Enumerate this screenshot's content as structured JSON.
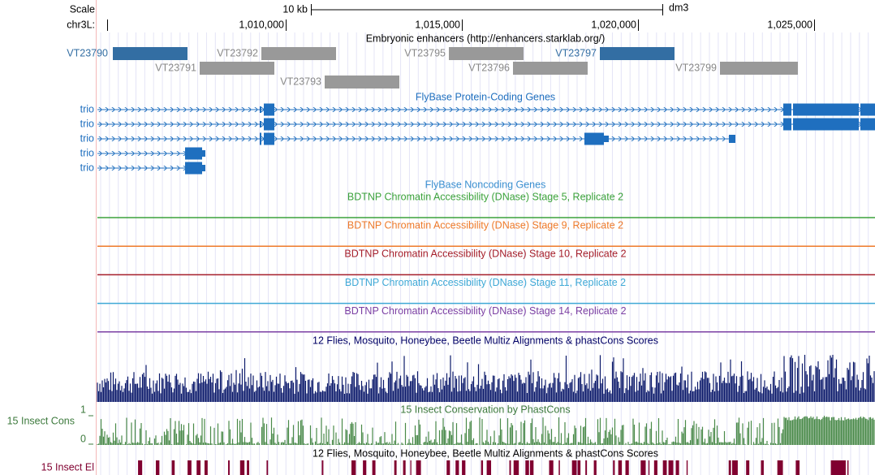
{
  "scale": {
    "label": "Scale",
    "bar_label": "10 kb",
    "assembly": "dm3"
  },
  "ruler": {
    "chrom": "chr3L:",
    "ticks": [
      "1,010,000",
      "1,015,000",
      "1,020,000",
      "1,025,000"
    ]
  },
  "enhancers": {
    "title": "Embryonic enhancers (http://enhancers.starklab.org/)",
    "items": [
      "VT23790",
      "VT23791",
      "VT23792",
      "VT23793",
      "VT23795",
      "VT23796",
      "VT23797",
      "VT23799"
    ]
  },
  "genes": {
    "title": "FlyBase Protein-Coding Genes",
    "labels": [
      "trio",
      "trio",
      "trio",
      "trio",
      "trio"
    ]
  },
  "noncoding": {
    "title": "FlyBase Noncoding Genes"
  },
  "dnase": [
    "BDTNP Chromatin Accessibility (DNase) Stage 5, Replicate 2",
    "BDTNP Chromatin Accessibility (DNase) Stage 9, Replicate 2",
    "BDTNP Chromatin Accessibility (DNase) Stage 10, Replicate 2",
    "BDTNP Chromatin Accessibility (DNase) Stage 11, Replicate 2",
    "BDTNP Chromatin Accessibility (DNase) Stage 14, Replicate 2"
  ],
  "multiz": {
    "title": "12 Flies, Mosquito, Honeybee, Beetle Multiz Alignments & phastCons Scores"
  },
  "conservation": {
    "title": "15 Insect Conservation by PhastCons",
    "side_label": "15 Insect Cons",
    "axis_top": "1",
    "axis_bottom": "0"
  },
  "elements": {
    "title": "12 Flies, Mosquito, Honeybee, Beetle Multiz Alignments & phastCons Scores",
    "side_label": "15 Insect El"
  }
}
